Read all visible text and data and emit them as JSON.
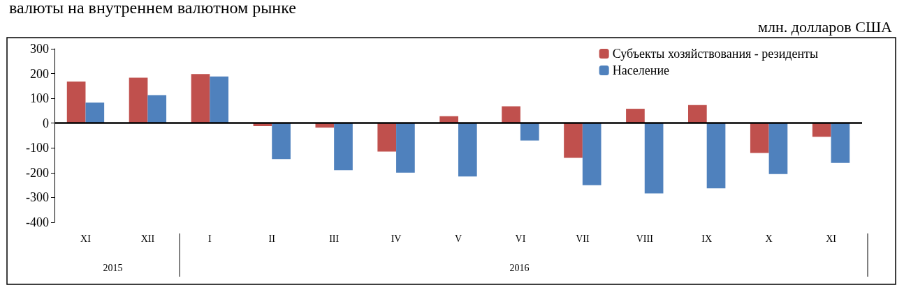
{
  "chart_data": {
    "type": "bar",
    "title": "валюты на внутреннем валютном рынке",
    "subtitle": "млн. долларов США",
    "categories": [
      "XI",
      "XII",
      "I",
      "II",
      "III",
      "IV",
      "V",
      "VI",
      "VII",
      "VIII",
      "IX",
      "X",
      "XI"
    ],
    "series": [
      {
        "name": "Субъекты хозяйствования - резиденты",
        "color": "#c0504d",
        "values": [
          168,
          183,
          198,
          -12,
          -18,
          -115,
          28,
          68,
          -140,
          58,
          73,
          -120,
          -55
        ]
      },
      {
        "name": "Население",
        "color": "#4f81bd",
        "values": [
          83,
          113,
          188,
          -145,
          -190,
          -200,
          -215,
          -70,
          -250,
          -283,
          -263,
          -205,
          -160
        ]
      }
    ],
    "ylim": [
      -400,
      300
    ],
    "yticks": [
      -400,
      -300,
      -200,
      -100,
      0,
      100,
      200,
      300
    ],
    "legend": "top right",
    "annotations": [
      "2015",
      "2016"
    ]
  }
}
